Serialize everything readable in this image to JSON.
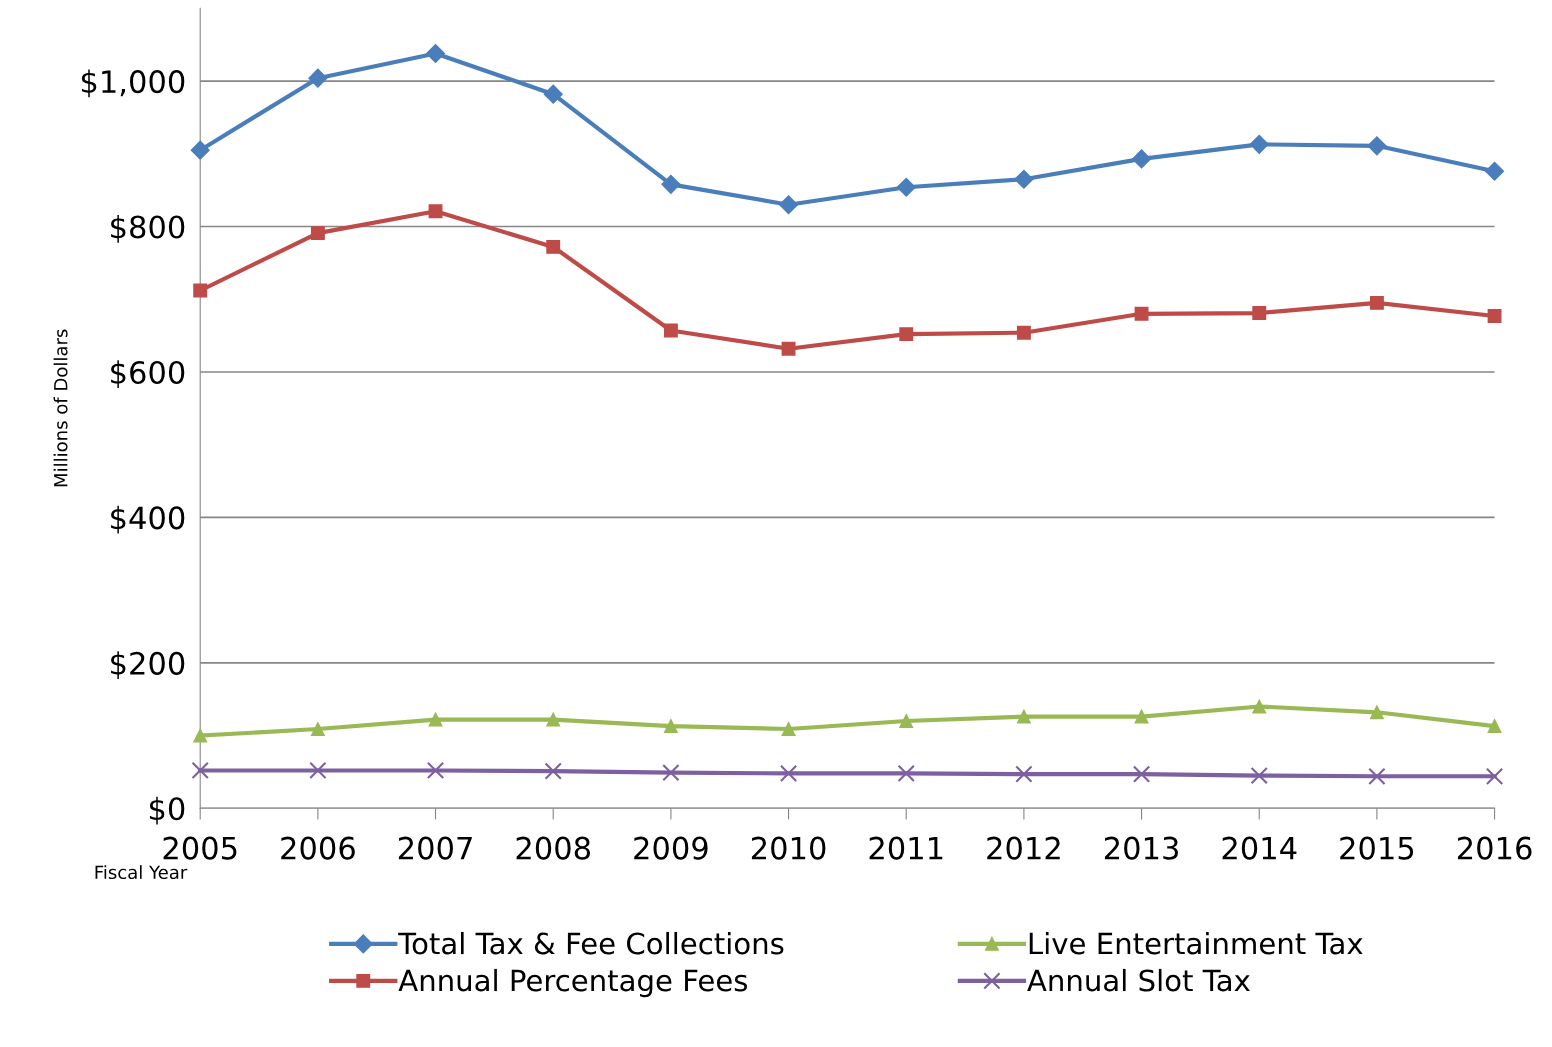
{
  "chart_data": {
    "type": "line",
    "xlabel": "Fiscal Year",
    "ylabel": "Millions of Dollars",
    "categories": [
      "2005",
      "2006",
      "2007",
      "2008",
      "2009",
      "2010",
      "2011",
      "2012",
      "2013",
      "2014",
      "2015",
      "2016"
    ],
    "series": [
      {
        "name": "Total Tax & Fee Collections",
        "color": "#4a7ebb",
        "marker": "diamond",
        "values": [
          905,
          1004,
          1038,
          982,
          858,
          830,
          854,
          865,
          893,
          913,
          911,
          876
        ]
      },
      {
        "name": "Annual Percentage Fees",
        "color": "#be4b48",
        "marker": "square",
        "values": [
          712,
          791,
          821,
          772,
          657,
          632,
          652,
          654,
          680,
          681,
          695,
          677
        ]
      },
      {
        "name": "Live Entertainment Tax",
        "color": "#98b954",
        "marker": "triangle",
        "values": [
          100,
          109,
          122,
          122,
          113,
          109,
          120,
          126,
          126,
          140,
          132,
          113
        ]
      },
      {
        "name": "Annual Slot Tax",
        "color": "#7d60a0",
        "marker": "cross",
        "values": [
          52,
          52,
          52,
          51,
          49,
          48,
          48,
          47,
          47,
          45,
          44,
          44
        ]
      }
    ],
    "ylim": [
      0,
      1100
    ],
    "yticks": [
      {
        "value": 0,
        "label": "$0"
      },
      {
        "value": 200,
        "label": "$200"
      },
      {
        "value": 400,
        "label": "$400"
      },
      {
        "value": 600,
        "label": "$600"
      },
      {
        "value": 800,
        "label": "$800"
      },
      {
        "value": 1000,
        "label": "$1,000"
      }
    ],
    "grid": "y",
    "legend": "bottom",
    "line_style": "solid"
  }
}
